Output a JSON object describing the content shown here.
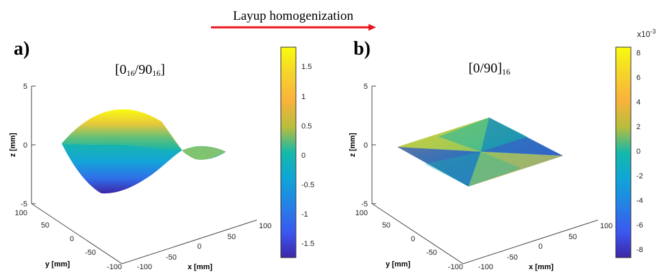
{
  "header": {
    "arrow_label": "Layup homogenization",
    "arrow_color": "#e8141b"
  },
  "panels": [
    {
      "tag": "a)",
      "title_main": "[0",
      "title_sub1": "16",
      "title_mid": "/90",
      "title_sub2": "16",
      "title_end": "]",
      "z_ticks": [
        "5",
        "0",
        "-5"
      ],
      "y_ticks": [
        "100",
        "50",
        "0",
        "-50",
        "-100"
      ],
      "x_ticks": [
        "-100",
        "-50",
        "0",
        "50",
        "100"
      ],
      "zlabel": "z [mm]",
      "ylabel": "y [mm]",
      "xlabel": "x [mm]",
      "colorbar": {
        "ticks": [
          "1.5",
          "1",
          "0.5",
          "0",
          "-0.5",
          "-1",
          "-1.5"
        ],
        "multiplier": ""
      }
    },
    {
      "tag": "b)",
      "title_main": "[0/90]",
      "title_sub": "16",
      "z_ticks": [
        "5",
        "0",
        "-5"
      ],
      "y_ticks": [
        "100",
        "50",
        "0",
        "-50",
        "-100"
      ],
      "x_ticks": [
        "-100",
        "-50",
        "0",
        "50",
        "100"
      ],
      "zlabel": "z [mm]",
      "ylabel": "y [mm]",
      "xlabel": "x [mm]",
      "colorbar": {
        "ticks": [
          "8",
          "6",
          "4",
          "2",
          "0",
          "-2",
          "-4",
          "-6",
          "-8"
        ],
        "multiplier": "x10",
        "multiplier_exp": "-3"
      }
    }
  ],
  "colors": {
    "parula_top": "#f9fb0e",
    "parula_mid": "#15b9a9",
    "parula_bottom": "#3e26a8"
  }
}
